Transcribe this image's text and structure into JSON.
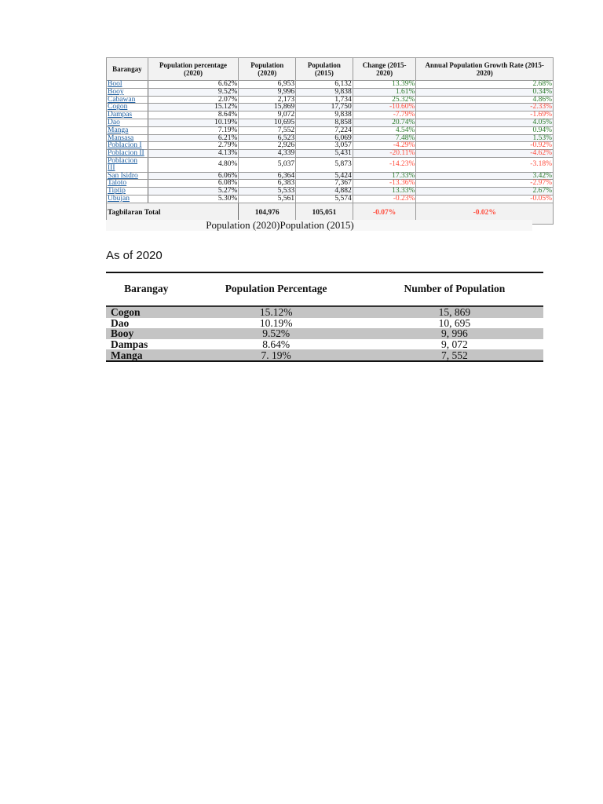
{
  "table1": {
    "headers": [
      "Barangay",
      "Population percentage (2020)",
      "Population (2020)",
      "Population (2015)",
      "Change (2015-2020)",
      "Annual Population Growth Rate (2015-2020)"
    ],
    "rows": [
      [
        "Bool",
        "6.62%",
        "6,953",
        "6,132",
        "13.39%",
        "2.68%"
      ],
      [
        "Booy",
        "9.52%",
        "9,996",
        "9,838",
        "1.61%",
        "0.34%"
      ],
      [
        "Cabawan",
        "2.07%",
        "2,173",
        "1,734",
        "25.32%",
        "4.86%"
      ],
      [
        "Cogon",
        "15.12%",
        "15,869",
        "17,750",
        "-10.60%",
        "-2.33%"
      ],
      [
        "Dampas",
        "8.64%",
        "9,072",
        "9,838",
        "-7.79%",
        "-1.69%"
      ],
      [
        "Dao",
        "10.19%",
        "10,695",
        "8,858",
        "20.74%",
        "4.05%"
      ],
      [
        "Manga",
        "7.19%",
        "7,552",
        "7,224",
        "4.54%",
        "0.94%"
      ],
      [
        "Mansasa",
        "6.21%",
        "6,523",
        "6,069",
        "7.48%",
        "1.53%"
      ],
      [
        "Poblacion I",
        "2.79%",
        "2,926",
        "3,057",
        "-4.29%",
        "-0.92%"
      ],
      [
        "Poblacion II",
        "4.13%",
        "4,339",
        "5,431",
        "-20.11%",
        "-4.62%"
      ],
      [
        "Poblacion III",
        "4.80%",
        "5,037",
        "5,873",
        "-14.23%",
        "-3.18%"
      ],
      [
        "San Isidro",
        "6.06%",
        "6,364",
        "5,424",
        "17.33%",
        "3.42%"
      ],
      [
        "Taloto",
        "6.08%",
        "6,383",
        "7,367",
        "-13.36%",
        "-2.97%"
      ],
      [
        "Tiptip",
        "5.27%",
        "5,533",
        "4,882",
        "13.33%",
        "2.67%"
      ],
      [
        "Ubujan",
        "5.30%",
        "5,561",
        "5,574",
        "-0.23%",
        "-0.05%"
      ]
    ],
    "total": {
      "label": "Tagbilaran Total",
      "pop2020": "104,976",
      "pop2015": "105,051",
      "change": "-0.07%",
      "growth": "-0.02%"
    },
    "colors": {
      "positive": "#2a7a2a",
      "negative": "#ff4a3a",
      "link": "#1f5fa0"
    }
  },
  "caption": "Population (2020)Population (2015)",
  "as_of": "As of 2020",
  "table2": {
    "headers": [
      "Barangay",
      "Population Percentage",
      "Number of Population"
    ],
    "rows": [
      [
        "Cogon",
        "15.12%",
        "15, 869"
      ],
      [
        "Dao",
        "10.19%",
        "10, 695"
      ],
      [
        "Booy",
        "9.52%",
        "9, 996"
      ],
      [
        "Dampas",
        "8.64%",
        "9, 072"
      ],
      [
        "Manga",
        "7. 19%",
        "7, 552"
      ]
    ]
  }
}
